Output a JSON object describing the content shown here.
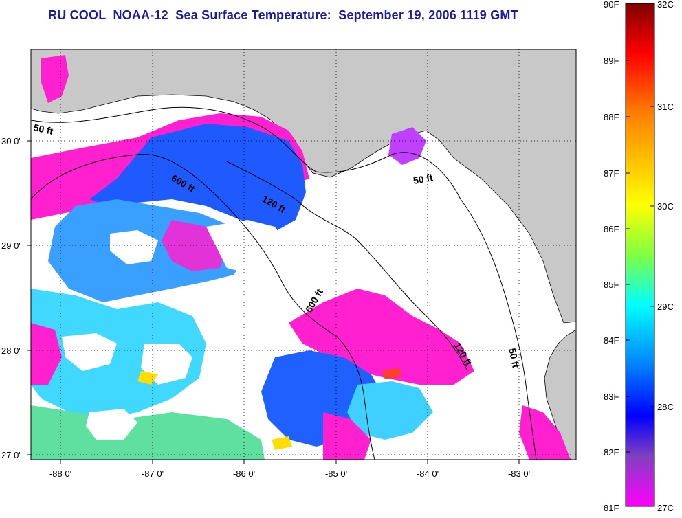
{
  "title": "RU COOL  NOAA-12  Sea Surface Temperature:  September 19, 2006 1119 GMT",
  "map": {
    "lon_range": [
      -88.3,
      -82.5
    ],
    "lat_range": [
      26.93,
      30.85
    ],
    "lon_ticks": [
      "-88 0'",
      "-87 0'",
      "-86 0'",
      "-85 0'",
      "-84 0'",
      "-83 0'"
    ],
    "lat_ticks": [
      "30 0'",
      "29 0'",
      "28 0'",
      "27 0'"
    ],
    "grid": "dotted",
    "colors": {
      "land": "#c8c8c8",
      "cloud_mask": "#ffffff",
      "coast": "#000000"
    },
    "contour_labels": [
      {
        "text": "50 ft"
      },
      {
        "text": "600 ft"
      },
      {
        "text": "120 ft"
      },
      {
        "text": "50 ft"
      },
      {
        "text": "600 ft"
      },
      {
        "text": "120 ft"
      },
      {
        "text": "50 ft"
      }
    ]
  },
  "colorbar": {
    "fahrenheit_labels": [
      "90F",
      "89F",
      "88F",
      "87F",
      "86F",
      "85F",
      "84F",
      "83F",
      "82F",
      "81F"
    ],
    "celsius_labels": [
      "32C",
      "31C",
      "30C",
      "29C",
      "28C",
      "27C"
    ],
    "colors": [
      "#800000",
      "#ff0000",
      "#ff8000",
      "#ffff00",
      "#80ff40",
      "#00ffff",
      "#0080ff",
      "#0000ff",
      "#8040c0",
      "#ff00ff"
    ]
  }
}
